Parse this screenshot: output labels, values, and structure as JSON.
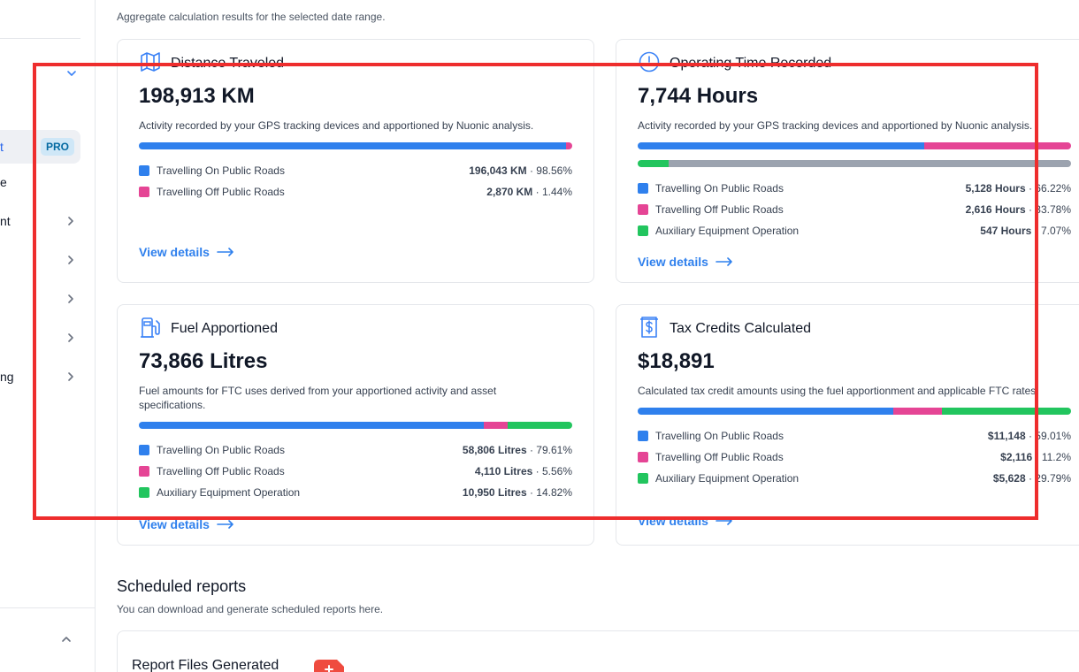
{
  "summary": {
    "subtitle": "Aggregate calculation results for the selected date range."
  },
  "sidebar": {
    "items": [
      {
        "label": "t",
        "badge": "PRO",
        "active": true
      },
      {
        "label": "e"
      },
      {
        "label": "nt"
      },
      {
        "label": ""
      },
      {
        "label": ""
      },
      {
        "label": ""
      },
      {
        "label": "ng"
      }
    ]
  },
  "cards": {
    "distance": {
      "title": "Distance Traveled",
      "value": "198,913 KM",
      "description": "Activity recorded by your GPS tracking devices and apportioned by Nuonic analysis.",
      "legend": [
        {
          "label": "Travelling On Public Roads",
          "amount": "196,043 KM",
          "pct": " · 98.56%"
        },
        {
          "label": "Travelling Off Public Roads",
          "amount": "2,870 KM",
          "pct": " · 1.44%"
        }
      ],
      "link": "View details"
    },
    "operating": {
      "title": "Operating Time Recorded",
      "value": "7,744 Hours",
      "description": "Activity recorded by your GPS tracking devices and apportioned by Nuonic analysis.",
      "legend": [
        {
          "label": "Travelling On Public Roads",
          "amount": "5,128 Hours",
          "pct": " · 66.22%"
        },
        {
          "label": "Travelling Off Public Roads",
          "amount": "2,616 Hours",
          "pct": " · 33.78%"
        },
        {
          "label": "Auxiliary Equipment Operation",
          "amount": "547 Hours",
          "pct": " · 7.07%"
        }
      ],
      "link": "View details"
    },
    "fuel": {
      "title": "Fuel Apportioned",
      "value": "73,866 Litres",
      "description": "Fuel amounts for FTC uses derived from your apportioned activity and asset specifications.",
      "legend": [
        {
          "label": "Travelling On Public Roads",
          "amount": "58,806 Litres",
          "pct": " · 79.61%"
        },
        {
          "label": "Travelling Off Public Roads",
          "amount": "4,110 Litres",
          "pct": " · 5.56%"
        },
        {
          "label": "Auxiliary Equipment Operation",
          "amount": "10,950 Litres",
          "pct": " · 14.82%"
        }
      ],
      "link": "View details"
    },
    "tax": {
      "title": "Tax Credits Calculated",
      "value": "$18,891",
      "description": "Calculated tax credit amounts using the fuel apportionment and applicable FTC rates.",
      "legend": [
        {
          "label": "Travelling On Public Roads",
          "amount": "$11,148",
          "pct": " · 59.01%"
        },
        {
          "label": "Travelling Off Public Roads",
          "amount": "$2,116",
          "pct": " · 11.2%"
        },
        {
          "label": "Auxiliary Equipment Operation",
          "amount": "$5,628",
          "pct": " · 29.79%"
        }
      ],
      "link": "View details"
    }
  },
  "bars": {
    "distance": [
      98.56,
      1.44
    ],
    "operating_main": [
      66.22,
      33.78
    ],
    "operating_aux": [
      7.07,
      92.93
    ],
    "fuel": [
      79.61,
      5.56,
      14.82
    ],
    "tax": [
      59.01,
      11.2,
      29.79
    ]
  },
  "scheduled": {
    "title": "Scheduled reports",
    "subtitle": "You can download and generate scheduled reports here.",
    "card_title": "Report Files Generated"
  },
  "colors": {
    "on_road": "#2f80ed",
    "off_road": "#e54595",
    "auxiliary": "#22c55e",
    "remainder": "#9ca3af",
    "link": "#2f80ed",
    "highlight": "#ee2d2d"
  }
}
